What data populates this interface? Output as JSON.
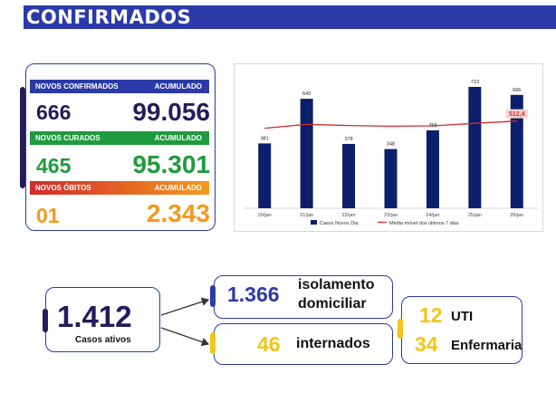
{
  "banner": {
    "title": "CONFIRMADOS"
  },
  "stats": {
    "confirmados": {
      "label": "NOVOS CONFIRMADOS",
      "acc_label": "ACUMULADO",
      "new": "666",
      "total": "99.056"
    },
    "curados": {
      "label": "NOVOS CURADOS",
      "acc_label": "ACUMULADO",
      "new": "465",
      "total": "95.301"
    },
    "obitos": {
      "label": "NOVOS ÓBITOS",
      "acc_label": "ACUMULADO",
      "new": "01",
      "total": "2.343"
    }
  },
  "colors": {
    "navy": "#241c59",
    "blue": "#2b3aa8",
    "green": "#1f9b3e",
    "orange": "#f39a1f",
    "red": "#d12b2b",
    "bar": "#0d1e6b",
    "yellow": "#f2c51b"
  },
  "chart_data": {
    "type": "bar",
    "categories": [
      "20/jan",
      "21/jan",
      "22/jan",
      "23/jan",
      "24/jan",
      "25/jan",
      "26/jan"
    ],
    "series": [
      {
        "name": "Casos Novos Dia",
        "type": "bar",
        "values": [
          381,
          643,
          378,
          348,
          458,
          713,
          666
        ]
      },
      {
        "name": "Média móvel dos últimos 7 dias",
        "type": "line",
        "values": [
          470,
          493,
          486,
          482,
          484,
          499,
          512.4
        ]
      }
    ],
    "annotations": [
      {
        "category": "26/jan",
        "text": "512,4"
      }
    ],
    "ylim": [
      0,
      750
    ],
    "legend": "bottom",
    "grid": false
  },
  "active": {
    "value": "1.412",
    "label": "Casos ativos"
  },
  "isolamento": {
    "value": "1.366",
    "label_line1": "isolamento",
    "label_line2": "domiciliar"
  },
  "internados": {
    "value": "46",
    "label": "internados"
  },
  "uti": {
    "value": "12",
    "label": "UTI"
  },
  "enfermaria": {
    "value": "34",
    "label": "Enfermaria"
  }
}
